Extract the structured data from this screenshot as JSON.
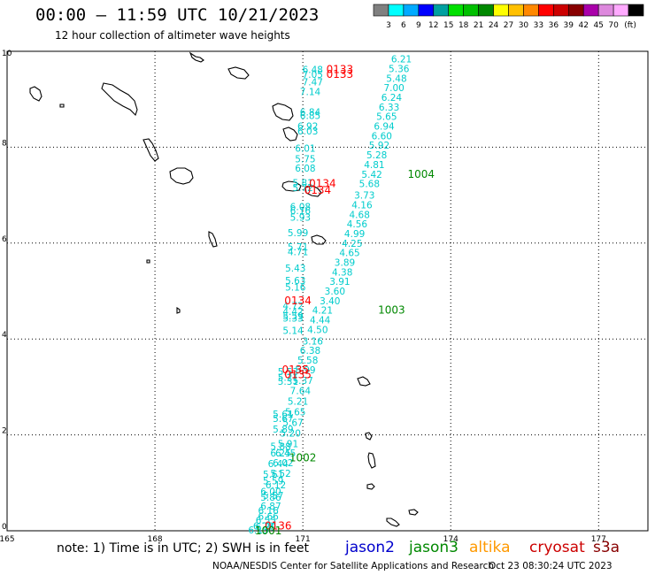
{
  "header": {
    "title": "00:00 – 11:59 UTC 10/21/2023",
    "subtitle": "12 hour collection of altimeter wave heights"
  },
  "legend": {
    "unit": "(ft)",
    "colors": [
      "#808080",
      "#00ffff",
      "#00aaff",
      "#0000ff",
      "#00a0a0",
      "#00e000",
      "#00c000",
      "#008800",
      "#ffff00",
      "#ffc000",
      "#ff8800",
      "#ff0000",
      "#cc0000",
      "#880000",
      "#aa00aa",
      "#dd88dd",
      "#ffaaff",
      "#000000"
    ],
    "values": [
      "3",
      "6",
      "9",
      "12",
      "15",
      "18",
      "21",
      "24",
      "27",
      "30",
      "33",
      "36",
      "39",
      "42",
      "45",
      "70"
    ]
  },
  "axes": {
    "x_ticks": [
      "165",
      "168",
      "171",
      "174",
      "177"
    ],
    "y_ticks": [
      "0",
      "2",
      "4",
      "6",
      "8",
      "10"
    ]
  },
  "chart_data": {
    "type": "scatter",
    "xlim": [
      165,
      178
    ],
    "ylim": [
      0,
      10
    ],
    "grid": true,
    "series": [
      {
        "name": "",
        "color": "#00cccc",
        "points": [
          {
            "lon": 171.2,
            "lat": 9.62,
            "v": "6.48"
          },
          {
            "lon": 171.2,
            "lat": 9.52,
            "v": "7.05"
          },
          {
            "lon": 171.2,
            "lat": 9.36,
            "v": "7.47"
          },
          {
            "lon": 171.15,
            "lat": 9.16,
            "v": "7.14"
          },
          {
            "lon": 171.15,
            "lat": 8.74,
            "v": "6.84"
          },
          {
            "lon": 171.15,
            "lat": 8.66,
            "v": "6.85"
          },
          {
            "lon": 171.1,
            "lat": 8.44,
            "v": "6.92"
          },
          {
            "lon": 171.1,
            "lat": 8.34,
            "v": "6.03"
          },
          {
            "lon": 171.05,
            "lat": 7.98,
            "v": "6.01"
          },
          {
            "lon": 171.05,
            "lat": 7.76,
            "v": "5.75"
          },
          {
            "lon": 171.05,
            "lat": 7.56,
            "v": "6.08"
          },
          {
            "lon": 171.0,
            "lat": 7.26,
            "v": "5.81"
          },
          {
            "lon": 171.0,
            "lat": 7.16,
            "v": "5.72"
          },
          {
            "lon": 170.95,
            "lat": 6.76,
            "v": "6.08"
          },
          {
            "lon": 170.95,
            "lat": 6.68,
            "v": "6.16"
          },
          {
            "lon": 170.95,
            "lat": 6.54,
            "v": "5.93"
          },
          {
            "lon": 170.9,
            "lat": 6.22,
            "v": "5.99"
          },
          {
            "lon": 170.9,
            "lat": 5.92,
            "v": "5.71"
          },
          {
            "lon": 170.9,
            "lat": 5.82,
            "v": "4.71"
          },
          {
            "lon": 170.85,
            "lat": 5.48,
            "v": "5.43"
          },
          {
            "lon": 170.85,
            "lat": 5.22,
            "v": "5.63"
          },
          {
            "lon": 170.85,
            "lat": 5.08,
            "v": "5.16"
          },
          {
            "lon": 170.8,
            "lat": 4.7,
            "v": "4.72"
          },
          {
            "lon": 170.8,
            "lat": 4.58,
            "v": "4.42"
          },
          {
            "lon": 170.8,
            "lat": 4.48,
            "v": "5.59"
          },
          {
            "lon": 170.8,
            "lat": 4.44,
            "v": "5.33"
          },
          {
            "lon": 170.8,
            "lat": 4.18,
            "v": "5.14"
          },
          {
            "lon": 170.7,
            "lat": 3.32,
            "v": "5.53"
          },
          {
            "lon": 170.7,
            "lat": 3.2,
            "v": "5.21"
          },
          {
            "lon": 170.7,
            "lat": 3.12,
            "v": "5.31"
          },
          {
            "lon": 170.6,
            "lat": 2.44,
            "v": "5.61"
          },
          {
            "lon": 170.6,
            "lat": 2.34,
            "v": "5.67"
          },
          {
            "lon": 170.6,
            "lat": 2.12,
            "v": "5.89"
          },
          {
            "lon": 170.55,
            "lat": 1.76,
            "v": "5.88"
          },
          {
            "lon": 170.55,
            "lat": 1.62,
            "v": "6.25"
          },
          {
            "lon": 170.5,
            "lat": 1.4,
            "v": "6.44"
          },
          {
            "lon": 170.4,
            "lat": 1.18,
            "v": "5.61"
          },
          {
            "lon": 170.4,
            "lat": 1.04,
            "v": "5.59"
          },
          {
            "lon": 170.35,
            "lat": 0.82,
            "v": "6.00"
          },
          {
            "lon": 170.35,
            "lat": 0.7,
            "v": "5.86"
          },
          {
            "lon": 170.3,
            "lat": 0.42,
            "v": "6.16"
          },
          {
            "lon": 170.25,
            "lat": 0.22,
            "v": "6.55"
          },
          {
            "lon": 170.2,
            "lat": 0.1,
            "v": "6.29"
          },
          {
            "lon": 170.1,
            "lat": 0.02,
            "v": "6.13"
          },
          {
            "lon": 173.0,
            "lat": 9.84,
            "v": "6.21"
          },
          {
            "lon": 172.95,
            "lat": 9.64,
            "v": "5.36"
          },
          {
            "lon": 172.9,
            "lat": 9.44,
            "v": "5.48"
          },
          {
            "lon": 172.85,
            "lat": 9.24,
            "v": "7.00"
          },
          {
            "lon": 172.8,
            "lat": 9.04,
            "v": "6.24"
          },
          {
            "lon": 172.75,
            "lat": 8.84,
            "v": "6.33"
          },
          {
            "lon": 172.7,
            "lat": 8.64,
            "v": "5.65"
          },
          {
            "lon": 172.65,
            "lat": 8.44,
            "v": "6.94"
          },
          {
            "lon": 172.6,
            "lat": 8.24,
            "v": "6.60"
          },
          {
            "lon": 172.55,
            "lat": 8.04,
            "v": "5.92"
          },
          {
            "lon": 172.5,
            "lat": 7.84,
            "v": "5.28"
          },
          {
            "lon": 172.45,
            "lat": 7.64,
            "v": "4.81"
          },
          {
            "lon": 172.4,
            "lat": 7.44,
            "v": "5.42"
          },
          {
            "lon": 172.35,
            "lat": 7.24,
            "v": "5.68"
          },
          {
            "lon": 172.25,
            "lat": 7.0,
            "v": "3.73"
          },
          {
            "lon": 172.2,
            "lat": 6.8,
            "v": "4.16"
          },
          {
            "lon": 172.15,
            "lat": 6.6,
            "v": "4.68"
          },
          {
            "lon": 172.1,
            "lat": 6.4,
            "v": "4.56"
          },
          {
            "lon": 172.05,
            "lat": 6.2,
            "v": "4.99"
          },
          {
            "lon": 172.0,
            "lat": 6.0,
            "v": "4.25"
          },
          {
            "lon": 171.95,
            "lat": 5.8,
            "v": "4.65"
          },
          {
            "lon": 171.85,
            "lat": 5.6,
            "v": "3.89"
          },
          {
            "lon": 171.8,
            "lat": 5.4,
            "v": "4.38"
          },
          {
            "lon": 171.75,
            "lat": 5.2,
            "v": "3.91"
          },
          {
            "lon": 171.65,
            "lat": 5.0,
            "v": "3.60"
          },
          {
            "lon": 171.55,
            "lat": 4.8,
            "v": "3.40"
          },
          {
            "lon": 171.4,
            "lat": 4.6,
            "v": "4.21"
          },
          {
            "lon": 171.35,
            "lat": 4.4,
            "v": "4.44"
          },
          {
            "lon": 171.3,
            "lat": 4.2,
            "v": "4.50"
          },
          {
            "lon": 171.2,
            "lat": 3.96,
            "v": "3.16"
          },
          {
            "lon": 171.15,
            "lat": 3.76,
            "v": "6.38"
          },
          {
            "lon": 171.1,
            "lat": 3.56,
            "v": "5.58"
          },
          {
            "lon": 171.05,
            "lat": 3.36,
            "v": "5.99"
          },
          {
            "lon": 171.0,
            "lat": 3.14,
            "v": "5.37"
          },
          {
            "lon": 170.95,
            "lat": 2.92,
            "v": "7.64"
          },
          {
            "lon": 170.9,
            "lat": 2.7,
            "v": "5.21"
          },
          {
            "lon": 170.85,
            "lat": 2.48,
            "v": "5.65"
          },
          {
            "lon": 170.8,
            "lat": 2.26,
            "v": "5.67"
          },
          {
            "lon": 170.75,
            "lat": 2.04,
            "v": "5.20"
          },
          {
            "lon": 170.7,
            "lat": 1.82,
            "v": "5.91"
          },
          {
            "lon": 170.65,
            "lat": 1.62,
            "v": "6.45"
          },
          {
            "lon": 170.6,
            "lat": 1.42,
            "v": "6.02"
          },
          {
            "lon": 170.55,
            "lat": 1.2,
            "v": "5.52"
          },
          {
            "lon": 170.45,
            "lat": 0.96,
            "v": "6.12"
          },
          {
            "lon": 170.4,
            "lat": 0.74,
            "v": "5.57"
          },
          {
            "lon": 170.35,
            "lat": 0.52,
            "v": "6.87"
          },
          {
            "lon": 170.3,
            "lat": 0.3,
            "v": "6.66"
          },
          {
            "lon": 170.25,
            "lat": 0.08,
            "v": "6.39"
          }
        ]
      },
      {
        "name": "",
        "color": "#ff0000",
        "points": [
          {
            "lon": 171.75,
            "lat": 9.62,
            "v": "0133"
          },
          {
            "lon": 171.75,
            "lat": 9.52,
            "v": "0133"
          },
          {
            "lon": 171.4,
            "lat": 7.24,
            "v": "0134"
          },
          {
            "lon": 171.3,
            "lat": 7.1,
            "v": "0134"
          },
          {
            "lon": 170.9,
            "lat": 4.8,
            "v": "0134"
          },
          {
            "lon": 170.85,
            "lat": 3.36,
            "v": "0135"
          },
          {
            "lon": 170.9,
            "lat": 3.26,
            "v": "0135"
          },
          {
            "lon": 170.5,
            "lat": 0.1,
            "v": "0136"
          }
        ]
      },
      {
        "name": "",
        "color": "#008800",
        "points": [
          {
            "lon": 173.4,
            "lat": 7.44,
            "v": "1004"
          },
          {
            "lon": 172.8,
            "lat": 4.6,
            "v": "1003"
          },
          {
            "lon": 171.0,
            "lat": 1.52,
            "v": "1002"
          },
          {
            "lon": 170.3,
            "lat": 0.0,
            "v": "1001"
          }
        ]
      }
    ]
  },
  "footer": {
    "note": "note: 1) Time is in UTC; 2) SWH is in feet",
    "credit": "NOAA/NESDIS Center for Satellite Applications and Research",
    "stamp": "Oct 23 08:30:24 UTC 2023"
  },
  "satellites": [
    {
      "label": "jason2",
      "color": "#0000cc"
    },
    {
      "label": "jason3",
      "color": "#008800"
    },
    {
      "label": "altika",
      "color": "#ff9900"
    },
    {
      "label": "cryosat",
      "color": "#cc0000"
    },
    {
      "label": "s3a",
      "color": "#880000"
    }
  ]
}
